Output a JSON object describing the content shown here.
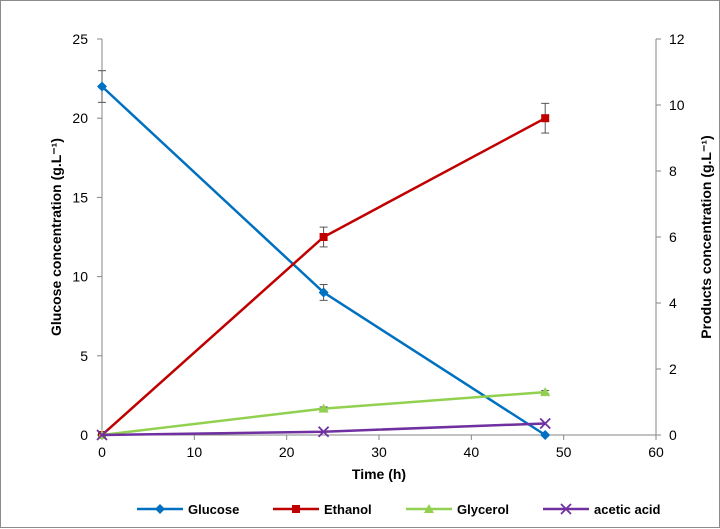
{
  "chart_data": {
    "type": "line",
    "title": "",
    "xlabel": "Time (h)",
    "ylabel_left": "Glucose concentration (g.L⁻¹)",
    "ylabel_right": "Products concentration (g.L⁻¹)",
    "xlim": [
      0,
      60
    ],
    "xticks": [
      0,
      10,
      20,
      30,
      40,
      50,
      60
    ],
    "ylim_left": [
      0,
      25
    ],
    "yticks_left": [
      0,
      5,
      10,
      15,
      20,
      25
    ],
    "ylim_right": [
      0,
      12
    ],
    "yticks_right": [
      0,
      2,
      4,
      6,
      8,
      10,
      12
    ],
    "grid": false,
    "legend_position": "bottom",
    "series": [
      {
        "name": "Glucose",
        "axis": "left",
        "color": "#0070C0",
        "marker": "diamond",
        "x": [
          0,
          24,
          48
        ],
        "y": [
          22.0,
          9.0,
          0.0
        ],
        "error": [
          1.0,
          0.5,
          0.0
        ]
      },
      {
        "name": "Ethanol",
        "axis": "right",
        "color": "#C00000",
        "marker": "square",
        "x": [
          0,
          24,
          48
        ],
        "y": [
          0.0,
          6.0,
          9.6
        ],
        "error": [
          0.0,
          0.3,
          0.45
        ]
      },
      {
        "name": "Glycerol",
        "axis": "right",
        "color": "#92D050",
        "marker": "triangle",
        "x": [
          0,
          24,
          48
        ],
        "y": [
          0.0,
          0.8,
          1.3
        ],
        "error": [
          0.0,
          0.05,
          0.05
        ]
      },
      {
        "name": "acetic acid",
        "axis": "right",
        "color": "#7030A0",
        "marker": "x",
        "x": [
          0,
          24,
          48
        ],
        "y": [
          0.0,
          0.1,
          0.35
        ],
        "error": [
          0.0,
          0.0,
          0.0
        ]
      }
    ]
  }
}
